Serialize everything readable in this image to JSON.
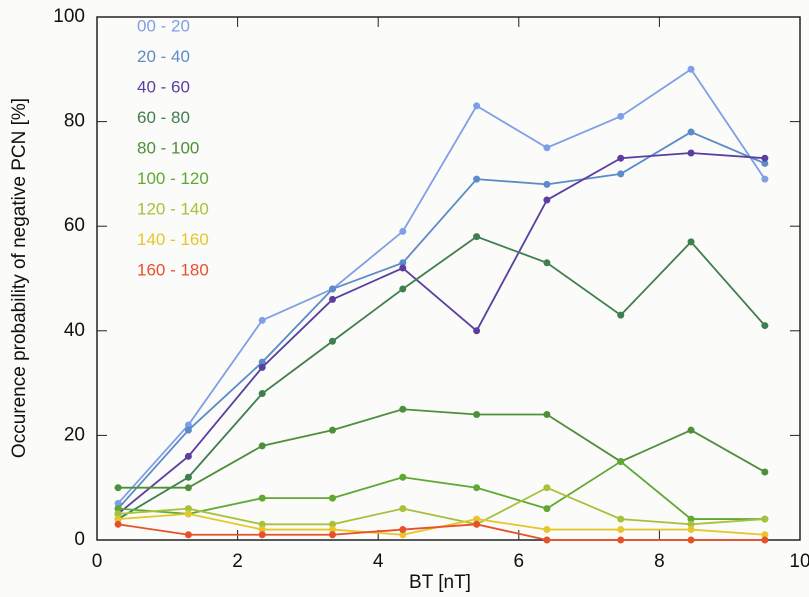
{
  "chart_data": {
    "type": "line",
    "x_label": "BT [nT]",
    "y_label": "Occurence probability of negative PCN [%]",
    "xlim": [
      0,
      10
    ],
    "xticks": [
      0,
      2,
      4,
      6,
      8,
      10
    ],
    "ylim": [
      0,
      100
    ],
    "yticks": [
      0,
      20,
      40,
      60,
      80,
      100
    ],
    "x": [
      0.3,
      1.3,
      2.35,
      3.35,
      4.35,
      5.4,
      6.4,
      7.45,
      8.45,
      9.5
    ],
    "series": [
      {
        "name": "00 - 20",
        "color": "#7f9fe6",
        "values": [
          7,
          22,
          42,
          48,
          59,
          83,
          75,
          81,
          90,
          69
        ]
      },
      {
        "name": "20 - 40",
        "color": "#5b8cc8",
        "values": [
          6,
          21,
          34,
          48,
          53,
          69,
          68,
          70,
          78,
          72
        ]
      },
      {
        "name": "40 - 60",
        "color": "#5a3fa0",
        "values": [
          5,
          16,
          33,
          46,
          52,
          40,
          65,
          73,
          74,
          73
        ]
      },
      {
        "name": "60 - 80",
        "color": "#3f7f4f",
        "values": [
          4,
          12,
          28,
          38,
          48,
          58,
          53,
          43,
          57,
          41
        ]
      },
      {
        "name": "80 - 100",
        "color": "#4e8f3a",
        "values": [
          10,
          10,
          18,
          21,
          25,
          24,
          24,
          15,
          21,
          13
        ]
      },
      {
        "name": "100 - 120",
        "color": "#5fa832",
        "values": [
          6,
          5,
          8,
          8,
          12,
          10,
          6,
          15,
          4,
          4
        ]
      },
      {
        "name": "120 - 140",
        "color": "#a6c23a",
        "values": [
          5,
          6,
          3,
          3,
          6,
          3,
          10,
          4,
          3,
          4
        ]
      },
      {
        "name": "140 - 160",
        "color": "#e6c62a",
        "values": [
          4,
          5,
          2,
          2,
          1,
          4,
          2,
          2,
          2,
          1
        ]
      },
      {
        "name": "160 - 180",
        "color": "#e8502a",
        "values": [
          3,
          1,
          1,
          1,
          2,
          3,
          0,
          0,
          0,
          0
        ]
      }
    ]
  }
}
